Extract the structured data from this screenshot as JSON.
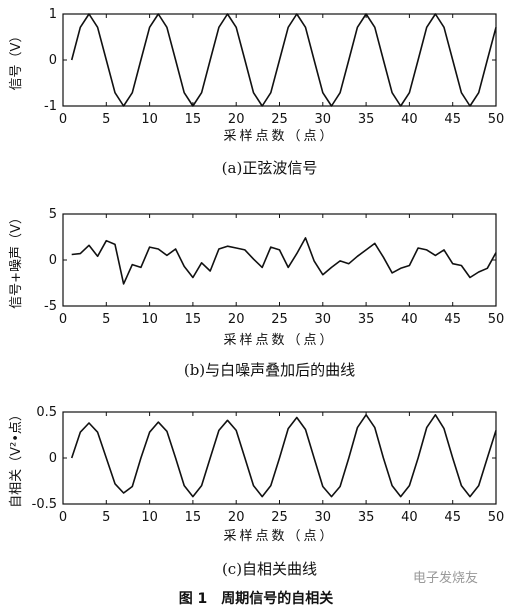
{
  "figure_title": "图 1　周期信号的自相关",
  "watermark": "电子发烧友",
  "chart_data": [
    {
      "type": "line",
      "caption": "(a)正弦波信号",
      "xlabel": "采样点数（点）",
      "ylabel": "信号（V）",
      "xlim": [
        0,
        50
      ],
      "ylim": [
        -1,
        1
      ],
      "xticks": [
        "0",
        "5",
        "10",
        "15",
        "20",
        "25",
        "30",
        "35",
        "40",
        "45",
        "50"
      ],
      "yticks": [
        "-1",
        "0",
        "1"
      ],
      "grid": false,
      "series": [
        {
          "x": [
            1,
            2,
            3,
            4,
            5,
            6,
            7,
            8,
            9,
            10,
            11,
            12,
            13,
            14,
            15,
            16,
            17,
            18,
            19,
            20,
            21,
            22,
            23,
            24,
            25,
            26,
            27,
            28,
            29,
            30,
            31,
            32,
            33,
            34,
            35,
            36,
            37,
            38,
            39,
            40,
            41,
            42,
            43,
            44,
            45,
            46,
            47,
            48,
            49,
            50
          ],
          "values": [
            0.0,
            0.71,
            1.0,
            0.71,
            0.0,
            -0.71,
            -1.0,
            -0.71,
            0.0,
            0.71,
            1.0,
            0.71,
            0.0,
            -0.71,
            -1.0,
            -0.71,
            0.0,
            0.71,
            1.0,
            0.71,
            0.0,
            -0.71,
            -1.0,
            -0.71,
            0.0,
            0.71,
            1.0,
            0.71,
            0.0,
            -0.71,
            -1.0,
            -0.71,
            0.0,
            0.71,
            1.0,
            0.71,
            0.0,
            -0.71,
            -1.0,
            -0.71,
            0.0,
            0.71,
            1.0,
            0.71,
            0.0,
            -0.71,
            -1.0,
            -0.71,
            0.0,
            0.71
          ]
        }
      ]
    },
    {
      "type": "line",
      "caption": "(b)与白噪声叠加后的曲线",
      "xlabel": "采样点数（点）",
      "ylabel": "信号+噪声（V）",
      "xlim": [
        0,
        50
      ],
      "ylim": [
        -5,
        5
      ],
      "xticks": [
        "0",
        "5",
        "10",
        "15",
        "20",
        "25",
        "30",
        "35",
        "40",
        "45",
        "50"
      ],
      "yticks": [
        "-5",
        "0",
        "5"
      ],
      "grid": false,
      "series": [
        {
          "x": [
            1,
            2,
            3,
            4,
            5,
            6,
            7,
            8,
            9,
            10,
            11,
            12,
            13,
            14,
            15,
            16,
            17,
            18,
            19,
            20,
            21,
            22,
            23,
            24,
            25,
            26,
            27,
            28,
            29,
            30,
            31,
            32,
            33,
            34,
            35,
            36,
            37,
            38,
            39,
            40,
            41,
            42,
            43,
            44,
            45,
            46,
            47,
            48,
            49,
            50
          ],
          "values": [
            0.6,
            0.7,
            1.6,
            0.4,
            2.1,
            1.7,
            -2.6,
            -0.5,
            -0.8,
            1.4,
            1.2,
            0.5,
            1.2,
            -0.7,
            -1.9,
            -0.3,
            -1.2,
            1.2,
            1.5,
            1.3,
            1.1,
            0.1,
            -0.8,
            1.4,
            1.1,
            -0.8,
            0.7,
            2.4,
            -0.1,
            -1.6,
            -0.8,
            -0.1,
            -0.4,
            0.4,
            1.1,
            1.8,
            0.3,
            -1.4,
            -0.9,
            -0.6,
            1.3,
            1.1,
            0.5,
            1.1,
            -0.4,
            -0.6,
            -1.9,
            -1.3,
            -0.9,
            0.8
          ]
        }
      ]
    },
    {
      "type": "line",
      "caption": "(c)自相关曲线",
      "xlabel": "采样点数（点）",
      "ylabel": "自相关（V²•点）",
      "xlim": [
        0,
        50
      ],
      "ylim": [
        -0.5,
        0.5
      ],
      "xticks": [
        "0",
        "5",
        "10",
        "15",
        "20",
        "25",
        "30",
        "35",
        "40",
        "45",
        "50"
      ],
      "yticks": [
        "-0.5",
        "0",
        "0.5"
      ],
      "grid": false,
      "series": [
        {
          "x": [
            1,
            2,
            3,
            4,
            5,
            6,
            7,
            8,
            9,
            10,
            11,
            12,
            13,
            14,
            15,
            16,
            17,
            18,
            19,
            20,
            21,
            22,
            23,
            24,
            25,
            26,
            27,
            28,
            29,
            30,
            31,
            32,
            33,
            34,
            35,
            36,
            37,
            38,
            39,
            40,
            41,
            42,
            43,
            44,
            45,
            46,
            47,
            48,
            49,
            50
          ],
          "values": [
            0.0,
            0.28,
            0.38,
            0.28,
            0.0,
            -0.28,
            -0.38,
            -0.31,
            0.0,
            0.28,
            0.39,
            0.29,
            0.0,
            -0.3,
            -0.42,
            -0.3,
            0.0,
            0.3,
            0.41,
            0.3,
            0.0,
            -0.3,
            -0.42,
            -0.3,
            0.0,
            0.32,
            0.44,
            0.31,
            0.0,
            -0.31,
            -0.42,
            -0.31,
            0.0,
            0.33,
            0.47,
            0.33,
            0.0,
            -0.3,
            -0.42,
            -0.3,
            0.0,
            0.33,
            0.47,
            0.32,
            0.0,
            -0.3,
            -0.42,
            -0.3,
            0.0,
            0.3
          ]
        }
      ]
    }
  ]
}
